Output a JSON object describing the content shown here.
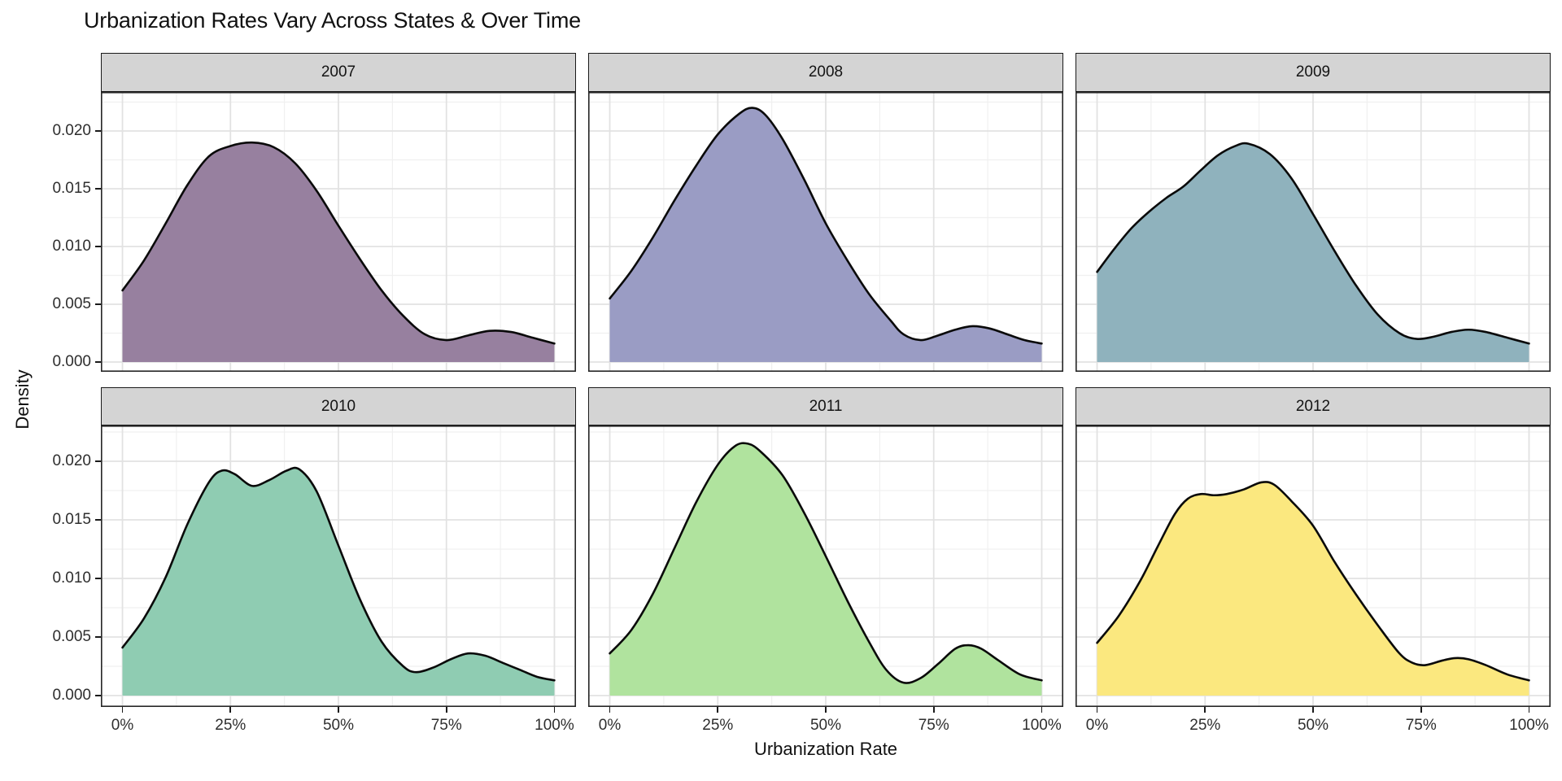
{
  "chart_data": {
    "type": "area",
    "subtype": "faceted-density",
    "title": "Urbanization Rates Vary Across States & Over Time",
    "xlabel": "Urbanization Rate",
    "ylabel": "Density",
    "grid": "major+minor",
    "legend": "none",
    "facet_layout": {
      "rows": 2,
      "cols": 3,
      "order": [
        "2007",
        "2008",
        "2009",
        "2010",
        "2011",
        "2012"
      ]
    },
    "x_axis": {
      "tick_labels": [
        "0%",
        "25%",
        "50%",
        "75%",
        "100%"
      ],
      "tick_values": [
        0,
        25,
        50,
        75,
        100
      ],
      "range_shown": [
        -5,
        105
      ]
    },
    "y_axis": {
      "tick_labels": [
        "0.000",
        "0.005",
        "0.010",
        "0.015",
        "0.020"
      ],
      "tick_values": [
        0,
        0.005,
        0.01,
        0.015,
        0.02
      ],
      "range_shown": [
        -0.0011,
        0.0233
      ]
    },
    "style": {
      "strip_fill": "#d4d4d4",
      "strip_border": "#1a1a1a",
      "panel_border": "#262626",
      "grid_major_color": "#e2e2e2",
      "grid_minor_color": "#f0f0f0",
      "curve_stroke": "#0a0a0a"
    },
    "facets": [
      {
        "label": "2007",
        "fill": "#97809f",
        "x": [
          0,
          5,
          10,
          15,
          20,
          25,
          30,
          35,
          40,
          45,
          50,
          55,
          60,
          65,
          70,
          75,
          80,
          85,
          90,
          95,
          100
        ],
        "density": [
          0.0062,
          0.0088,
          0.012,
          0.0153,
          0.0178,
          0.0187,
          0.019,
          0.0186,
          0.0172,
          0.0148,
          0.0118,
          0.0089,
          0.0062,
          0.004,
          0.0024,
          0.0019,
          0.0023,
          0.0027,
          0.0026,
          0.0021,
          0.0016
        ]
      },
      {
        "label": "2008",
        "fill": "#9a9cc4",
        "x": [
          0,
          5,
          10,
          15,
          20,
          25,
          30,
          33,
          36,
          40,
          45,
          50,
          55,
          60,
          65,
          68,
          72,
          76,
          80,
          84,
          88,
          92,
          96,
          100
        ],
        "density": [
          0.0055,
          0.0079,
          0.0108,
          0.014,
          0.017,
          0.0197,
          0.0215,
          0.022,
          0.0214,
          0.0193,
          0.0158,
          0.012,
          0.0088,
          0.0059,
          0.0036,
          0.0024,
          0.0019,
          0.0023,
          0.0028,
          0.0031,
          0.0029,
          0.0024,
          0.0019,
          0.0016
        ]
      },
      {
        "label": "2009",
        "fill": "#8fb2bd",
        "x": [
          0,
          4,
          8,
          12,
          16,
          20,
          24,
          28,
          32,
          35,
          40,
          45,
          50,
          55,
          60,
          65,
          70,
          74,
          78,
          82,
          86,
          90,
          95,
          100
        ],
        "density": [
          0.0078,
          0.0098,
          0.0116,
          0.013,
          0.0142,
          0.0152,
          0.0166,
          0.0179,
          0.0187,
          0.0189,
          0.018,
          0.0159,
          0.0128,
          0.0096,
          0.0066,
          0.0041,
          0.0025,
          0.002,
          0.0022,
          0.0026,
          0.0028,
          0.0026,
          0.0021,
          0.0016
        ]
      },
      {
        "label": "2010",
        "fill": "#8fccb2",
        "x": [
          0,
          5,
          10,
          15,
          20,
          23,
          26,
          30,
          34,
          38,
          41,
          45,
          50,
          55,
          60,
          65,
          68,
          72,
          76,
          80,
          84,
          88,
          92,
          96,
          100
        ],
        "density": [
          0.0041,
          0.0066,
          0.0101,
          0.0146,
          0.0182,
          0.0192,
          0.0189,
          0.0179,
          0.0184,
          0.0192,
          0.0193,
          0.0174,
          0.0128,
          0.0082,
          0.0046,
          0.0025,
          0.002,
          0.0024,
          0.0031,
          0.0036,
          0.0034,
          0.0028,
          0.0022,
          0.0016,
          0.0013
        ]
      },
      {
        "label": "2011",
        "fill": "#b0e39e",
        "x": [
          0,
          5,
          10,
          15,
          20,
          25,
          29,
          32,
          35,
          40,
          45,
          50,
          55,
          60,
          64,
          68,
          72,
          76,
          80,
          83,
          86,
          90,
          95,
          100
        ],
        "density": [
          0.0036,
          0.0056,
          0.0087,
          0.0126,
          0.0165,
          0.0197,
          0.0213,
          0.0215,
          0.0208,
          0.0188,
          0.0156,
          0.0119,
          0.0081,
          0.0046,
          0.0022,
          0.0011,
          0.0015,
          0.0027,
          0.004,
          0.0043,
          0.004,
          0.003,
          0.0018,
          0.0013
        ]
      },
      {
        "label": "2012",
        "fill": "#fbe87f",
        "x": [
          0,
          5,
          10,
          14,
          18,
          21,
          24,
          27,
          30,
          34,
          38,
          41,
          45,
          50,
          55,
          60,
          65,
          70,
          73,
          76,
          80,
          83,
          86,
          90,
          95,
          100
        ],
        "density": [
          0.0045,
          0.0068,
          0.0098,
          0.0127,
          0.0155,
          0.0168,
          0.0172,
          0.0171,
          0.0172,
          0.0176,
          0.0182,
          0.018,
          0.0166,
          0.0145,
          0.0114,
          0.0086,
          0.006,
          0.0036,
          0.0028,
          0.0026,
          0.003,
          0.0032,
          0.0031,
          0.0026,
          0.0018,
          0.0013
        ]
      }
    ]
  }
}
